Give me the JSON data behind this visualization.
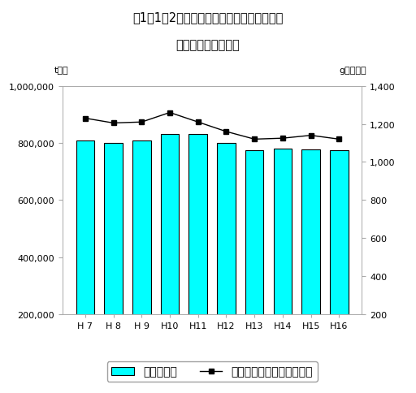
{
  "title_line1": "図1－1－2　ごみ排出量及び１人１日当たり",
  "title_line2": "ごみ排出総量の推移",
  "categories": [
    "H 7",
    "H 8",
    "H 9",
    "H10",
    "H11",
    "H12",
    "H13",
    "H14",
    "H15",
    "H16"
  ],
  "bar_values": [
    810000,
    800000,
    810000,
    830000,
    830000,
    800000,
    775000,
    780000,
    778000,
    775000
  ],
  "line_values": [
    1230,
    1205,
    1210,
    1260,
    1210,
    1160,
    1120,
    1125,
    1140,
    1120
  ],
  "bar_color": "#00FFFF",
  "bar_edgecolor": "#000000",
  "line_color": "#000000",
  "marker": "s",
  "marker_size": 5,
  "yleft_label": "t／年",
  "yright_label": "g／人・日",
  "yleft_min": 200000,
  "yleft_max": 1000000,
  "yright_min": 200,
  "yright_max": 1400,
  "yleft_ticks": [
    200000,
    400000,
    600000,
    800000,
    1000000
  ],
  "yright_ticks": [
    200,
    400,
    600,
    800,
    1000,
    1200,
    1400
  ],
  "legend_bar_label": "ごみ排出量",
  "legend_line_label": "１人１日当たりごみ排出量",
  "background_color": "#ffffff",
  "title_fontsize": 10.5,
  "axis_label_fontsize": 8,
  "tick_fontsize": 8,
  "legend_fontsize": 9
}
